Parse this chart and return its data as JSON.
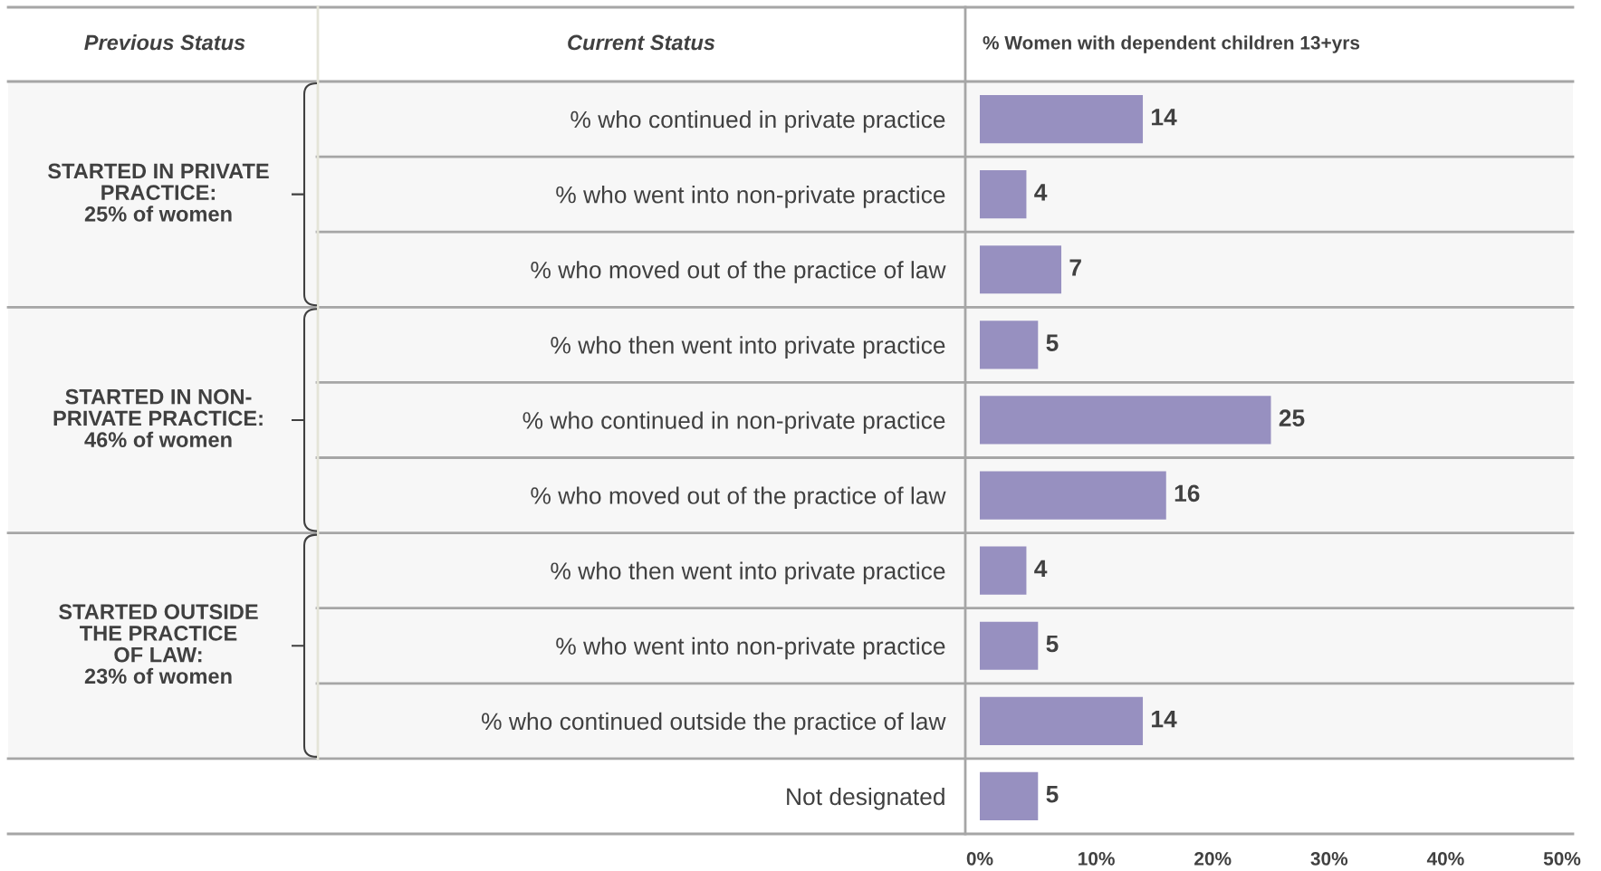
{
  "chart_data": {
    "type": "bar",
    "orientation": "horizontal",
    "title": "% Women with dependent children 13+yrs",
    "categories": [
      "% who continued in private practice",
      "% who went into non-private practice",
      "% who moved out of the practice of law",
      "% who then went into private practice",
      "% who continued in non-private practice",
      "% who moved out of the practice of law",
      "% who then went into private practice",
      "% who went into non-private practice",
      "% who continued outside the practice of law",
      "Not designated"
    ],
    "values": [
      14,
      4,
      7,
      5,
      25,
      16,
      4,
      5,
      14,
      5
    ],
    "color": "#9790c0",
    "xlim": [
      0,
      50
    ],
    "xticks": [
      {
        "value": 0,
        "label": "0%"
      },
      {
        "value": 10,
        "label": "10%"
      },
      {
        "value": 20,
        "label": "20%"
      },
      {
        "value": 30,
        "label": "30%"
      },
      {
        "value": 40,
        "label": "40%"
      },
      {
        "value": 50,
        "label": "50%"
      }
    ],
    "data_labels": true,
    "grid": "y",
    "legend": false,
    "bands": [
      {
        "axis": "y",
        "from": "% who continued in private practice",
        "to": "% who continued outside the practice of law",
        "color": "#f7f7f7"
      }
    ],
    "annotations": [
      "Previous Status",
      "Current Status",
      "STARTED IN PRIVATE\nPRACTICE:\n25% of women",
      "STARTED IN NON-\nPRIVATE PRACTICE:\n46% of women",
      "STARTED OUTSIDE\nTHE PRACTICE\nOF LAW:\n23% of women"
    ]
  }
}
